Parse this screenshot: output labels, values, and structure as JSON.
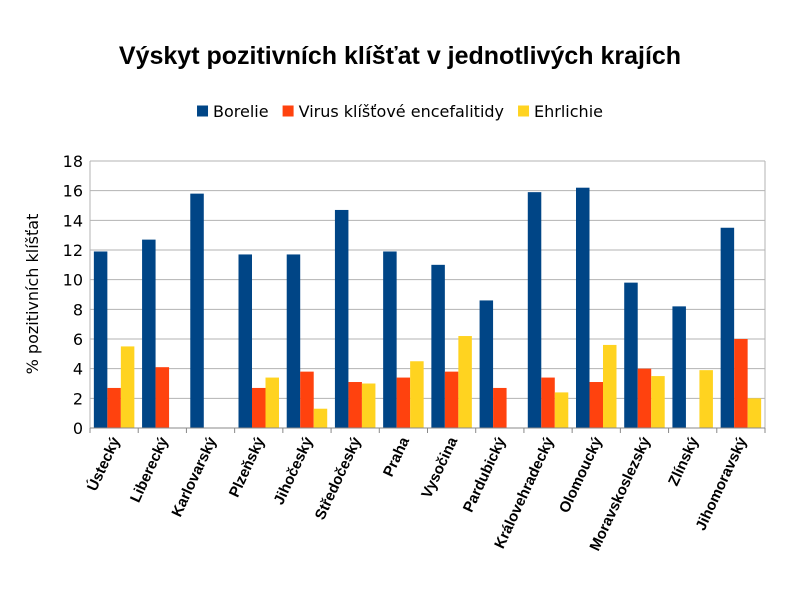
{
  "chart_data": {
    "type": "bar",
    "title": "Výskyt pozitivních klíšťat v jednotlivých krajích",
    "ylabel": "% pozitivních klíšťat",
    "xlabel": "",
    "ylim": [
      0,
      18
    ],
    "yticks": [
      0,
      2,
      4,
      6,
      8,
      10,
      12,
      14,
      16,
      18
    ],
    "grid": true,
    "legend_position": "top",
    "categories": [
      "Ústecký",
      "Liberecký",
      "Karlovarský",
      "Plzeňský",
      "Jihočeský",
      "Středočeský",
      "Praha",
      "Vysočina",
      "Pardubický",
      "Královehradecký",
      "Olomoucký",
      "Moravskoslezský",
      "Zlínský",
      "Jihomoravský"
    ],
    "series": [
      {
        "name": "Borelie",
        "color": "#004586",
        "values": [
          11.9,
          12.7,
          15.8,
          11.7,
          11.7,
          14.7,
          11.9,
          11.0,
          8.6,
          15.9,
          16.2,
          9.8,
          8.2,
          13.5
        ]
      },
      {
        "name": "Virus klíšťové encefalitidy",
        "color": "#ff420e",
        "values": [
          2.7,
          4.1,
          0,
          2.7,
          3.8,
          3.1,
          3.4,
          3.8,
          2.7,
          3.4,
          3.1,
          4.0,
          0,
          6.0
        ]
      },
      {
        "name": "Ehrlichie",
        "color": "#ffd320",
        "values": [
          5.5,
          0,
          0,
          3.4,
          1.3,
          3.0,
          4.5,
          6.2,
          0,
          2.4,
          5.6,
          3.5,
          3.9,
          2.0
        ]
      }
    ]
  }
}
